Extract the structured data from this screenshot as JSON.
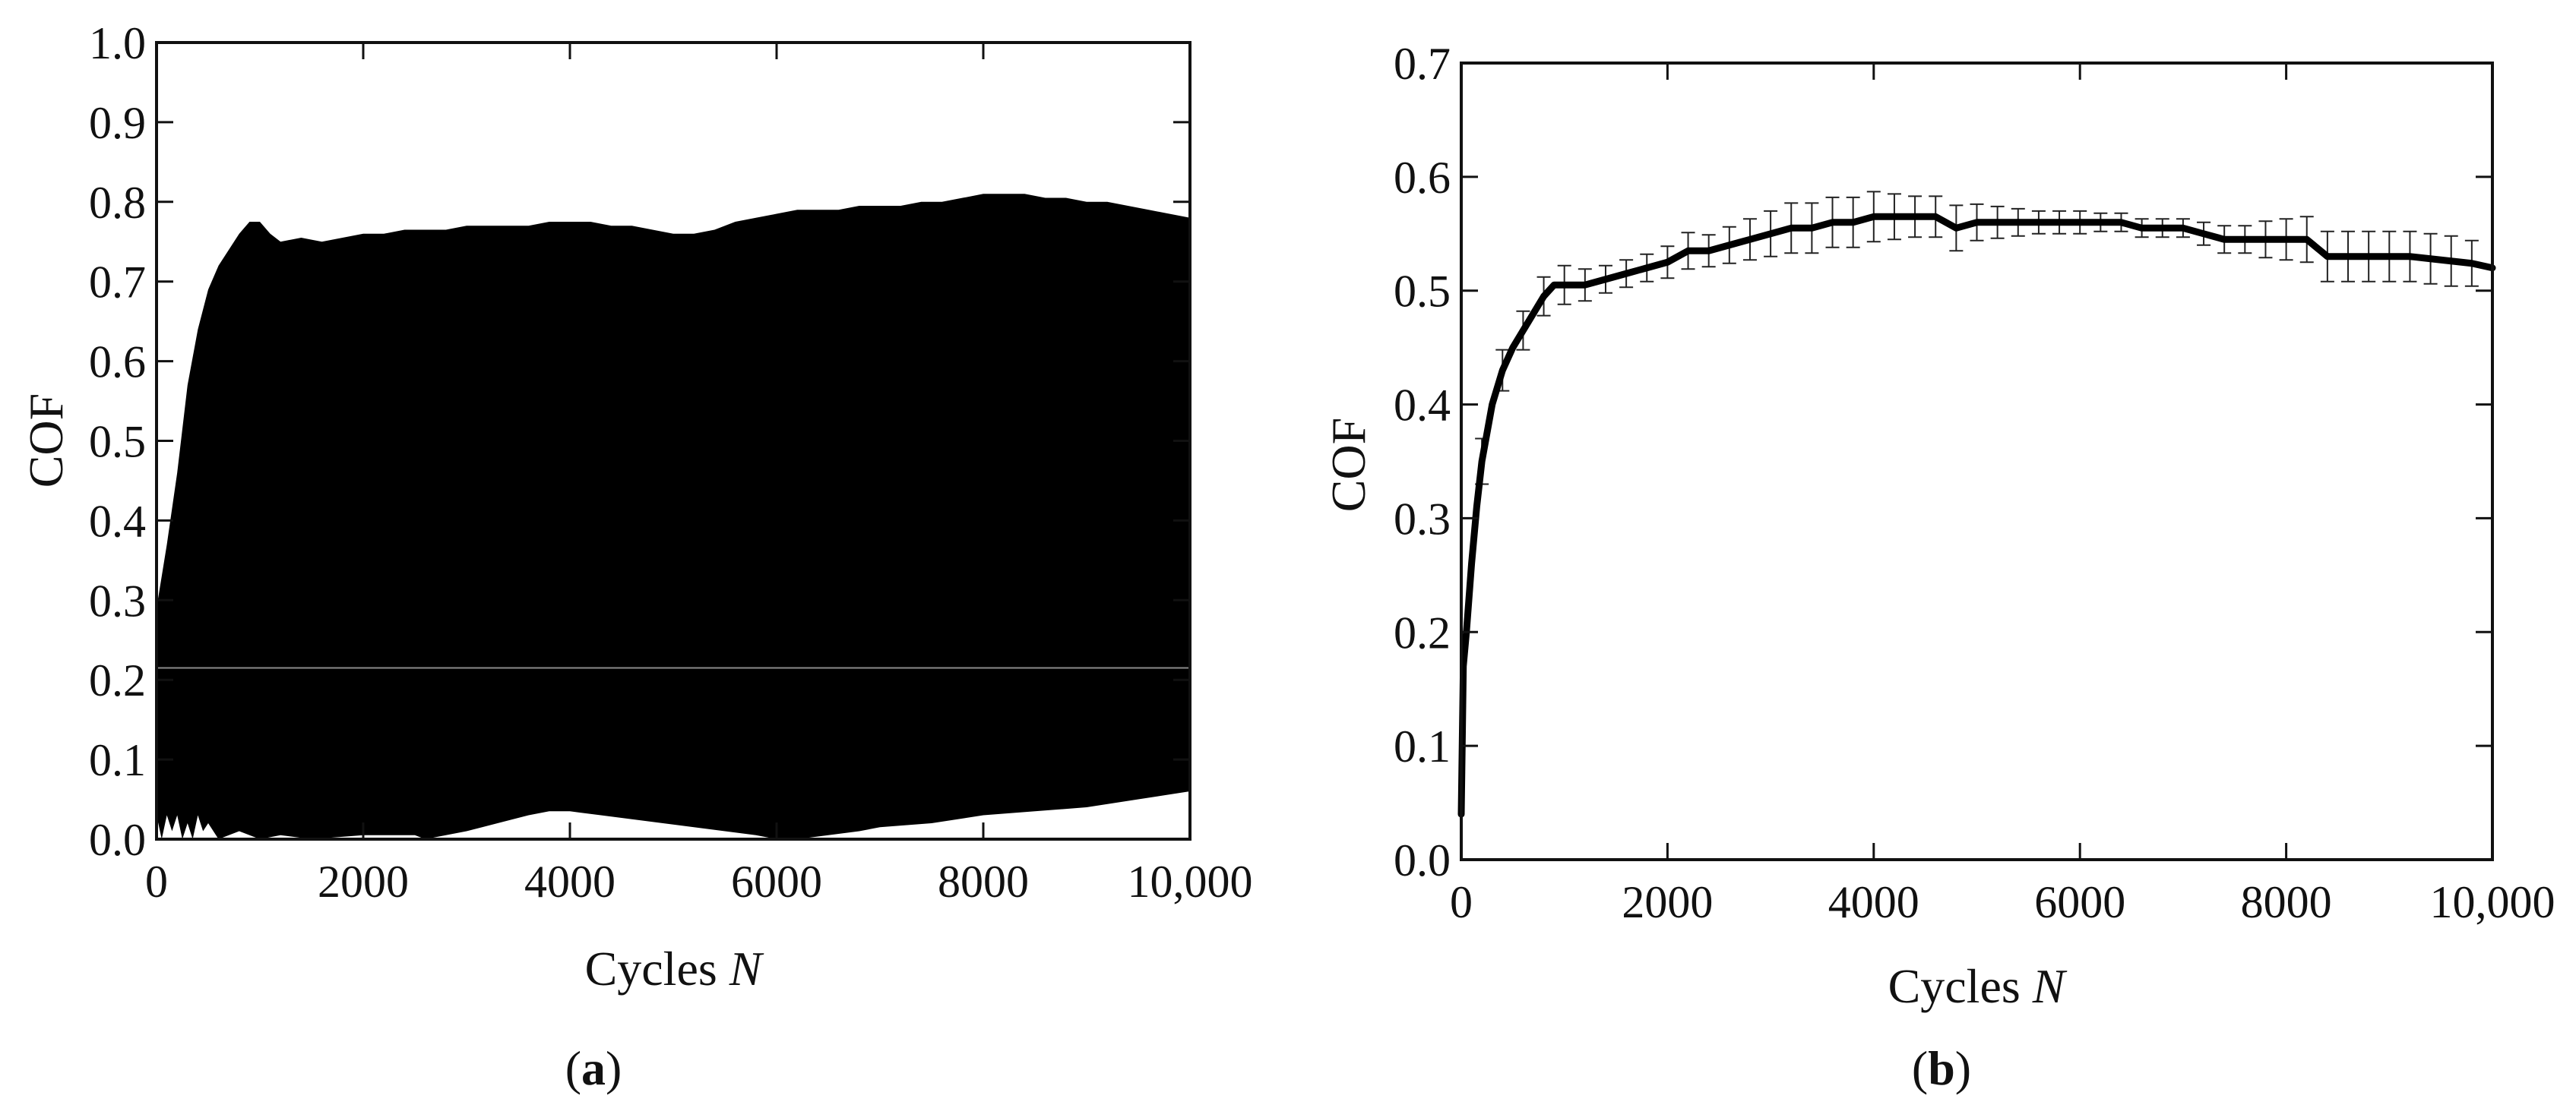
{
  "chart_data": [
    {
      "type": "area",
      "panel_label": "a",
      "xlabel_text": "Cycles ",
      "xlabel_var": "N",
      "ylabel": "COF",
      "xlim": [
        0,
        10000
      ],
      "ylim": [
        0,
        1.0
      ],
      "xticks": [
        0,
        2000,
        4000,
        6000,
        8000,
        10000
      ],
      "xtick_labels": [
        "0",
        "2000",
        "4000",
        "6000",
        "8000",
        "10,000"
      ],
      "yticks": [
        0.0,
        0.1,
        0.2,
        0.3,
        0.4,
        0.5,
        0.6,
        0.7,
        0.8,
        0.9,
        1.0
      ],
      "ytick_labels": [
        "0.0",
        "0.1",
        "0.2",
        "0.3",
        "0.4",
        "0.5",
        "0.6",
        "0.7",
        "0.8",
        "0.9",
        "1.0"
      ],
      "fill_color": "#000000",
      "reference_line_y": 0.215,
      "reference_line_color": "#8a8a8a",
      "series": [
        {
          "upper_envelope": {
            "x": [
              0,
              50,
              100,
              200,
              300,
              400,
              500,
              600,
              700,
              800,
              900,
              1000,
              1100,
              1200,
              1400,
              1600,
              1800,
              2000,
              2200,
              2400,
              2600,
              2800,
              3000,
              3200,
              3400,
              3600,
              3800,
              4000,
              4200,
              4400,
              4600,
              4800,
              5000,
              5200,
              5400,
              5600,
              5800,
              6000,
              6200,
              6400,
              6600,
              6800,
              7000,
              7200,
              7400,
              7600,
              7800,
              8000,
              8200,
              8400,
              8600,
              8800,
              9000,
              9200,
              9400,
              9600,
              9800,
              10000
            ],
            "y": [
              0.29,
              0.33,
              0.37,
              0.46,
              0.57,
              0.64,
              0.69,
              0.72,
              0.74,
              0.76,
              0.775,
              0.775,
              0.76,
              0.75,
              0.755,
              0.75,
              0.755,
              0.76,
              0.76,
              0.765,
              0.765,
              0.765,
              0.77,
              0.77,
              0.77,
              0.77,
              0.775,
              0.775,
              0.775,
              0.77,
              0.77,
              0.765,
              0.76,
              0.76,
              0.765,
              0.775,
              0.78,
              0.785,
              0.79,
              0.79,
              0.79,
              0.795,
              0.795,
              0.795,
              0.8,
              0.8,
              0.805,
              0.81,
              0.81,
              0.81,
              0.805,
              0.805,
              0.8,
              0.8,
              0.795,
              0.79,
              0.785,
              0.78
            ]
          },
          "lower_envelope": {
            "x": [
              0,
              50,
              100,
              150,
              200,
              250,
              300,
              350,
              400,
              450,
              500,
              600,
              800,
              1000,
              1200,
              1500,
              2000,
              2500,
              2600,
              2800,
              3000,
              3300,
              3600,
              3800,
              4000,
              4300,
              4600,
              4900,
              5200,
              5500,
              5800,
              6000,
              6200,
              6500,
              6800,
              7000,
              7500,
              8000,
              8500,
              9000,
              9500,
              10000
            ],
            "y": [
              0.03,
              0.0,
              0.03,
              0.01,
              0.03,
              0.0,
              0.02,
              0.0,
              0.03,
              0.01,
              0.02,
              0.0,
              0.01,
              0.0,
              0.005,
              0.0,
              0.005,
              0.005,
              0.0,
              0.005,
              0.01,
              0.02,
              0.03,
              0.035,
              0.035,
              0.03,
              0.025,
              0.02,
              0.015,
              0.01,
              0.005,
              0.0,
              0.0,
              0.005,
              0.01,
              0.015,
              0.02,
              0.03,
              0.035,
              0.04,
              0.05,
              0.06
            ]
          }
        }
      ]
    },
    {
      "type": "line",
      "panel_label": "b",
      "xlabel_text": "Cycles ",
      "xlabel_var": "N",
      "ylabel": "COF",
      "xlim": [
        0,
        10000
      ],
      "ylim": [
        0,
        0.7
      ],
      "xticks": [
        0,
        2000,
        4000,
        6000,
        8000,
        10000
      ],
      "xtick_labels": [
        "0",
        "2000",
        "4000",
        "6000",
        "8000",
        "10,000"
      ],
      "yticks": [
        0.0,
        0.1,
        0.2,
        0.3,
        0.4,
        0.5,
        0.6,
        0.7
      ],
      "ytick_labels": [
        "0.0",
        "0.1",
        "0.2",
        "0.3",
        "0.4",
        "0.5",
        "0.6",
        "0.7"
      ],
      "line_color": "#000000",
      "series": [
        {
          "x": [
            0,
            20,
            50,
            100,
            150,
            200,
            300,
            400,
            500,
            600,
            700,
            800,
            900,
            1000,
            1200,
            1400,
            1600,
            1800,
            2000,
            2200,
            2400,
            2600,
            2800,
            3000,
            3200,
            3400,
            3600,
            3800,
            4000,
            4200,
            4400,
            4600,
            4800,
            5000,
            5200,
            5400,
            5600,
            5800,
            6000,
            6200,
            6400,
            6600,
            6800,
            7000,
            7200,
            7400,
            7600,
            7800,
            8000,
            8200,
            8400,
            8600,
            8800,
            9000,
            9200,
            9400,
            9600,
            9800,
            10000
          ],
          "y": [
            0.04,
            0.17,
            0.2,
            0.26,
            0.31,
            0.35,
            0.4,
            0.43,
            0.45,
            0.465,
            0.48,
            0.495,
            0.505,
            0.505,
            0.505,
            0.51,
            0.515,
            0.52,
            0.525,
            0.535,
            0.535,
            0.54,
            0.545,
            0.55,
            0.555,
            0.555,
            0.56,
            0.56,
            0.565,
            0.565,
            0.565,
            0.565,
            0.555,
            0.56,
            0.56,
            0.56,
            0.56,
            0.56,
            0.56,
            0.56,
            0.56,
            0.555,
            0.555,
            0.555,
            0.55,
            0.545,
            0.545,
            0.545,
            0.545,
            0.545,
            0.53,
            0.53,
            0.53,
            0.53,
            0.53,
            0.528,
            0.526,
            0.524,
            0.52
          ],
          "error_x": [
            200,
            400,
            600,
            800,
            1000,
            1200,
            1400,
            1600,
            1800,
            2000,
            2200,
            2400,
            2600,
            2800,
            3000,
            3200,
            3400,
            3600,
            3800,
            4000,
            4200,
            4400,
            4600,
            4800,
            5000,
            5200,
            5400,
            5600,
            5800,
            6000,
            6200,
            6400,
            6600,
            6800,
            7000,
            7200,
            7400,
            7600,
            7800,
            8000,
            8200,
            8400,
            8600,
            8800,
            9000,
            9200,
            9400,
            9600,
            9800
          ],
          "error_half": [
            0.02,
            0.018,
            0.017,
            0.017,
            0.017,
            0.014,
            0.012,
            0.012,
            0.012,
            0.014,
            0.016,
            0.014,
            0.016,
            0.018,
            0.02,
            0.022,
            0.022,
            0.022,
            0.022,
            0.022,
            0.02,
            0.018,
            0.018,
            0.02,
            0.016,
            0.014,
            0.012,
            0.01,
            0.01,
            0.01,
            0.008,
            0.008,
            0.008,
            0.008,
            0.008,
            0.01,
            0.012,
            0.012,
            0.016,
            0.018,
            0.02,
            0.022,
            0.022,
            0.022,
            0.022,
            0.022,
            0.022,
            0.022,
            0.02
          ]
        }
      ]
    }
  ]
}
